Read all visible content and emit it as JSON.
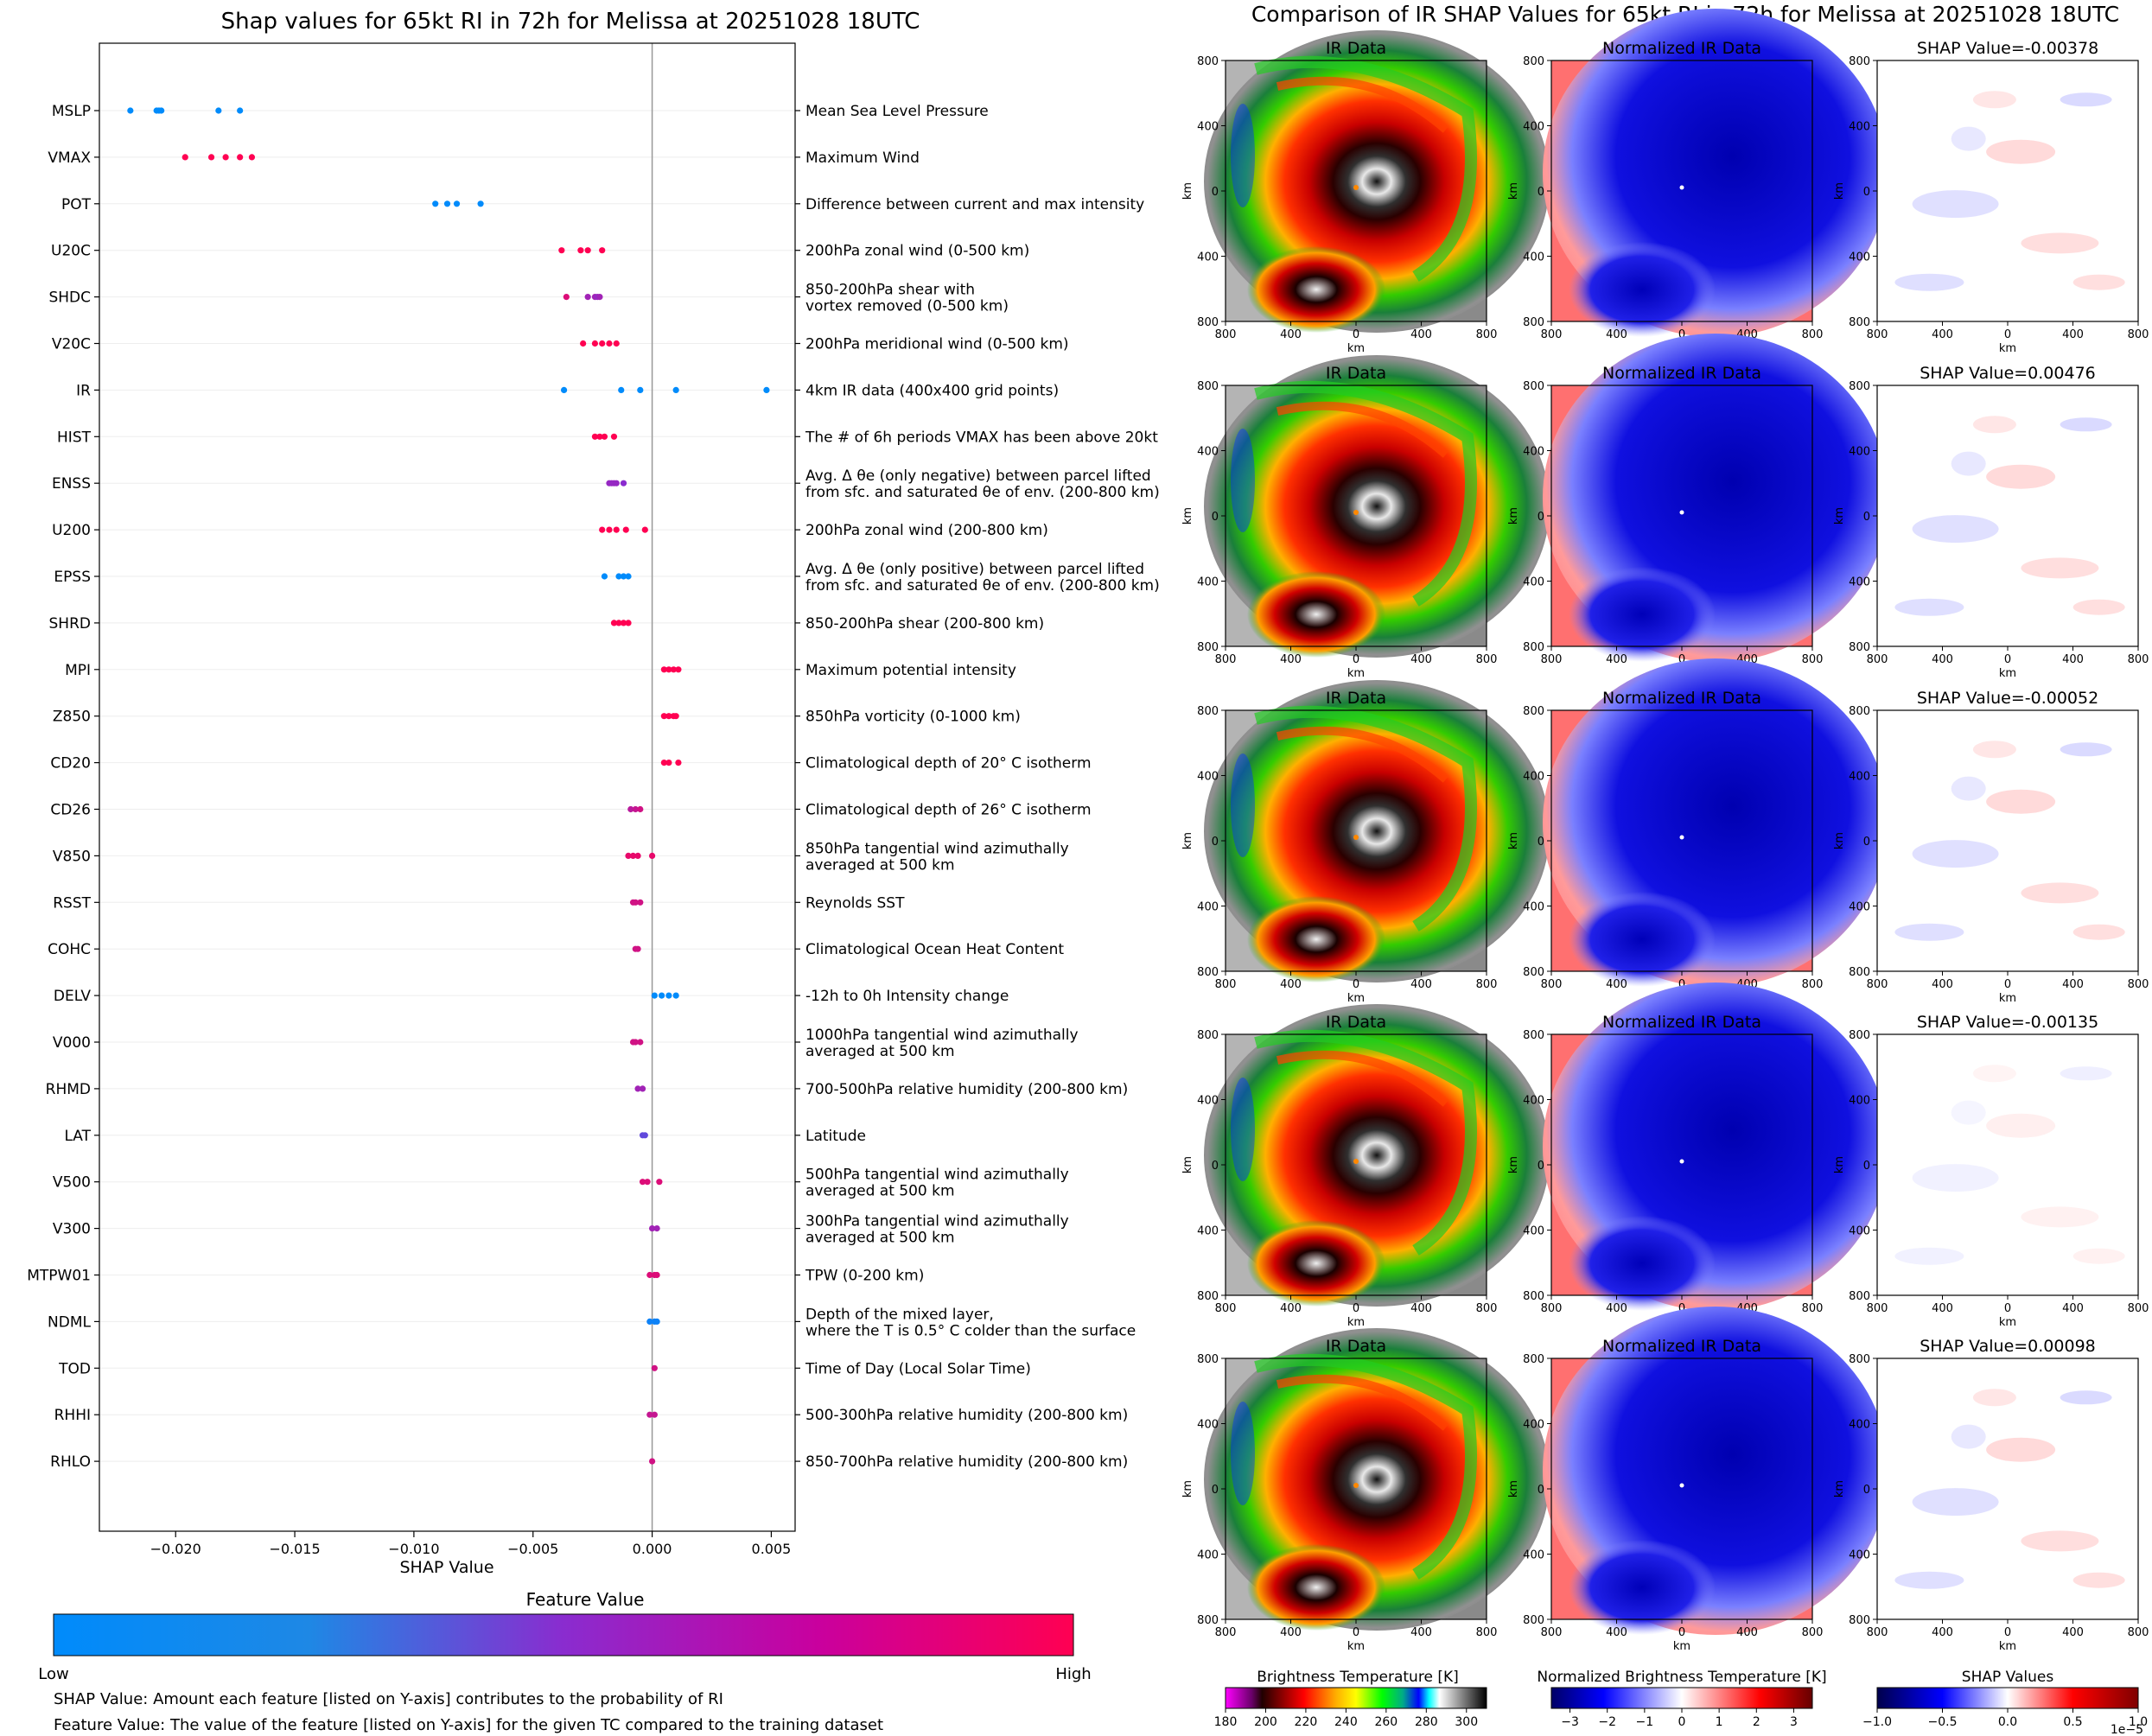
{
  "colors": {
    "low": "#008bfb",
    "mid": "#8a2ccf",
    "high": "#ff0052",
    "axis": "#000000",
    "zeroline": "#999999",
    "gridline": "#eeeeee"
  },
  "chart_data": [
    {
      "type": "scatter",
      "title": "Shap values for 65kt RI in 72h for Melissa at 20251028 18UTC",
      "xlabel": "SHAP Value",
      "xlim": [
        -0.0232,
        0.006
      ],
      "xticks": [
        -0.02,
        -0.015,
        -0.01,
        -0.005,
        0.0,
        0.005
      ],
      "xtick_labels": [
        "−0.020",
        "−0.015",
        "−0.010",
        "−0.005",
        "0.000",
        "0.005"
      ],
      "features": [
        {
          "code": "MSLP",
          "desc": "Mean Sea Level Pressure",
          "points": [
            [
              -0.0219,
              0
            ],
            [
              -0.0208,
              0
            ],
            [
              -0.0207,
              0
            ],
            [
              -0.0206,
              0
            ],
            [
              -0.0182,
              0
            ],
            [
              -0.0173,
              0
            ]
          ]
        },
        {
          "code": "VMAX",
          "desc": "Maximum Wind",
          "points": [
            [
              -0.0196,
              1
            ],
            [
              -0.0185,
              1
            ],
            [
              -0.0179,
              1
            ],
            [
              -0.0173,
              1
            ],
            [
              -0.0168,
              1
            ]
          ]
        },
        {
          "code": "POT",
          "desc": "Difference between current and max intensity",
          "points": [
            [
              -0.0091,
              0
            ],
            [
              -0.0086,
              0
            ],
            [
              -0.0082,
              0
            ],
            [
              -0.0072,
              0
            ]
          ]
        },
        {
          "code": "U20C",
          "desc": "200hPa zonal wind (0-500 km)",
          "points": [
            [
              -0.0038,
              1
            ],
            [
              -0.003,
              1
            ],
            [
              -0.0027,
              1
            ],
            [
              -0.0021,
              1
            ]
          ]
        },
        {
          "code": "SHDC",
          "desc": "850-200hPa shear with|vortex removed (0-500 km)",
          "points": [
            [
              -0.0036,
              0.85
            ],
            [
              -0.0027,
              0.6
            ],
            [
              -0.0024,
              0.6
            ],
            [
              -0.0023,
              0.55
            ],
            [
              -0.0022,
              0.6
            ]
          ]
        },
        {
          "code": "V20C",
          "desc": "200hPa meridional wind (0-500 km)",
          "points": [
            [
              -0.0029,
              1
            ],
            [
              -0.0024,
              1
            ],
            [
              -0.0021,
              1
            ],
            [
              -0.0018,
              1
            ],
            [
              -0.0015,
              1
            ]
          ]
        },
        {
          "code": "IR",
          "desc": "4km IR data (400x400 grid points)",
          "points": [
            [
              -0.0037,
              0
            ],
            [
              -0.0013,
              0
            ],
            [
              -0.0005,
              0
            ],
            [
              0.001,
              0
            ],
            [
              0.0048,
              0
            ]
          ]
        },
        {
          "code": "HIST",
          "desc": "The # of 6h periods VMAX has been above 20kt",
          "points": [
            [
              -0.0024,
              1
            ],
            [
              -0.0022,
              1
            ],
            [
              -0.002,
              1
            ],
            [
              -0.0016,
              1
            ]
          ]
        },
        {
          "code": "ENSS",
          "desc": "Avg. Δ θe (only negative) between parcel lifted|from sfc. and saturated θe of env. (200-800 km)",
          "points": [
            [
              -0.0018,
              0.55
            ],
            [
              -0.0017,
              0.55
            ],
            [
              -0.0016,
              0.55
            ],
            [
              -0.0015,
              0.55
            ],
            [
              -0.0012,
              0.5
            ]
          ]
        },
        {
          "code": "U200",
          "desc": "200hPa zonal wind (200-800 km)",
          "points": [
            [
              -0.0021,
              1
            ],
            [
              -0.0018,
              1
            ],
            [
              -0.0015,
              1
            ],
            [
              -0.0011,
              1
            ],
            [
              -0.0003,
              1
            ]
          ]
        },
        {
          "code": "EPSS",
          "desc": "Avg. Δ θe (only positive) between parcel lifted|from sfc. and saturated θe of env. (200-800 km)",
          "points": [
            [
              -0.002,
              0
            ],
            [
              -0.0014,
              0
            ],
            [
              -0.0012,
              0
            ],
            [
              -0.001,
              0
            ]
          ]
        },
        {
          "code": "SHRD",
          "desc": "850-200hPa shear (200-800 km)",
          "points": [
            [
              -0.0016,
              1
            ],
            [
              -0.0014,
              1
            ],
            [
              -0.0012,
              1
            ],
            [
              -0.001,
              1
            ]
          ]
        },
        {
          "code": "MPI",
          "desc": "Maximum potential intensity",
          "points": [
            [
              0.0005,
              1
            ],
            [
              0.0007,
              1
            ],
            [
              0.0009,
              1
            ],
            [
              0.0011,
              1
            ]
          ]
        },
        {
          "code": "Z850",
          "desc": "850hPa vorticity (0-1000 km)",
          "points": [
            [
              0.0005,
              1
            ],
            [
              0.0007,
              1
            ],
            [
              0.0009,
              1
            ],
            [
              0.001,
              1
            ]
          ]
        },
        {
          "code": "CD20",
          "desc": "Climatological depth of 20° C isotherm",
          "points": [
            [
              0.0005,
              1
            ],
            [
              0.0007,
              1
            ],
            [
              0.0011,
              1
            ]
          ]
        },
        {
          "code": "CD26",
          "desc": "Climatological depth of 26° C isotherm",
          "points": [
            [
              -0.0009,
              0.7
            ],
            [
              -0.0007,
              0.75
            ],
            [
              -0.0005,
              0.8
            ]
          ]
        },
        {
          "code": "V850",
          "desc": "850hPa tangential wind azimuthally|averaged at 500 km",
          "points": [
            [
              -0.001,
              0.9
            ],
            [
              -0.0008,
              0.9
            ],
            [
              -0.0006,
              0.9
            ],
            [
              0.0,
              0.9
            ]
          ]
        },
        {
          "code": "RSST",
          "desc": "Reynolds SST",
          "points": [
            [
              -0.0008,
              0.8
            ],
            [
              -0.0007,
              0.8
            ],
            [
              -0.0005,
              0.8
            ]
          ]
        },
        {
          "code": "COHC",
          "desc": "Climatological Ocean Heat Content",
          "points": [
            [
              -0.0007,
              0.8
            ],
            [
              -0.0006,
              0.8
            ]
          ]
        },
        {
          "code": "DELV",
          "desc": "-12h to 0h Intensity change",
          "points": [
            [
              0.0001,
              0
            ],
            [
              0.0004,
              0
            ],
            [
              0.0007,
              0
            ],
            [
              0.001,
              0
            ]
          ]
        },
        {
          "code": "V000",
          "desc": "1000hPa tangential wind azimuthally|averaged at 500 km",
          "points": [
            [
              -0.0008,
              0.8
            ],
            [
              -0.0007,
              0.8
            ],
            [
              -0.0005,
              0.8
            ]
          ]
        },
        {
          "code": "RHMD",
          "desc": "700-500hPa relative humidity (200-800 km)",
          "points": [
            [
              -0.0006,
              0.6
            ],
            [
              -0.0004,
              0.6
            ]
          ]
        },
        {
          "code": "LAT",
          "desc": "Latitude",
          "points": [
            [
              -0.0004,
              0.35
            ],
            [
              -0.0003,
              0.35
            ]
          ]
        },
        {
          "code": "V500",
          "desc": "500hPa tangential wind azimuthally|averaged at 500 km",
          "points": [
            [
              -0.0004,
              0.85
            ],
            [
              -0.0002,
              0.85
            ],
            [
              0.0003,
              0.85
            ]
          ]
        },
        {
          "code": "V300",
          "desc": "300hPa tangential wind azimuthally|averaged at 500 km",
          "points": [
            [
              0.0,
              0.6
            ],
            [
              0.0002,
              0.6
            ]
          ]
        },
        {
          "code": "MTPW01",
          "desc": "TPW (0-200 km)",
          "points": [
            [
              -0.0001,
              0.85
            ],
            [
              0.0001,
              0.85
            ],
            [
              0.0002,
              0.85
            ]
          ]
        },
        {
          "code": "NDML",
          "desc": "Depth of the mixed layer,|where the T is 0.5° C colder than the surface",
          "points": [
            [
              -0.0001,
              0.05
            ],
            [
              0.0001,
              0.05
            ],
            [
              0.0002,
              0.05
            ]
          ]
        },
        {
          "code": "TOD",
          "desc": "Time of Day (Local Solar Time)",
          "points": [
            [
              0.0001,
              0.8
            ]
          ]
        },
        {
          "code": "RHHI",
          "desc": "500-300hPa relative humidity (200-800 km)",
          "points": [
            [
              -0.0001,
              0.75
            ],
            [
              0.0001,
              0.75
            ]
          ]
        },
        {
          "code": "RHLO",
          "desc": "850-700hPa relative humidity (200-800 km)",
          "points": [
            [
              0.0,
              0.8
            ]
          ]
        }
      ],
      "colorbar": {
        "title": "Feature Value",
        "low": "Low",
        "high": "High"
      },
      "notes": [
        "SHAP Value: Amount each feature [listed on Y-axis] contributes to the probability of RI",
        "Feature Value: The value of the feature [listed on Y-axis] for the given TC compared to the training dataset"
      ]
    },
    {
      "type": "heatmap",
      "title": "Comparison of IR SHAP Values for 65kt RI in 72h for Melissa at 20251028 18UTC",
      "column_titles": [
        "IR Data",
        "Normalized IR Data"
      ],
      "shap_titles": [
        "SHAP Value=-0.00378",
        "SHAP Value=0.00476",
        "SHAP Value=-0.00052",
        "SHAP Value=-0.00135",
        "SHAP Value=0.00098"
      ],
      "xticks": [
        "800",
        "400",
        "0",
        "400",
        "800"
      ],
      "yticks": [
        "800",
        "400",
        "0",
        "400",
        "800"
      ],
      "axis_label": "km",
      "colorbars": [
        {
          "label": "Brightness Temperature [K]",
          "ticks": [
            "180",
            "200",
            "220",
            "240",
            "260",
            "280",
            "300"
          ],
          "range": [
            180,
            310
          ]
        },
        {
          "label": "Normalized Brightness Temperature [K]",
          "ticks": [
            "−3",
            "−2",
            "−1",
            "0",
            "1",
            "2",
            "3"
          ],
          "range": [
            -3.5,
            3.5
          ]
        },
        {
          "label": "SHAP Values",
          "ticks": [
            "−1.0",
            "−0.5",
            "0.0",
            "0.5",
            "1.0"
          ],
          "range": [
            -1.0,
            1.0
          ],
          "offset": "1e−5"
        }
      ]
    }
  ]
}
